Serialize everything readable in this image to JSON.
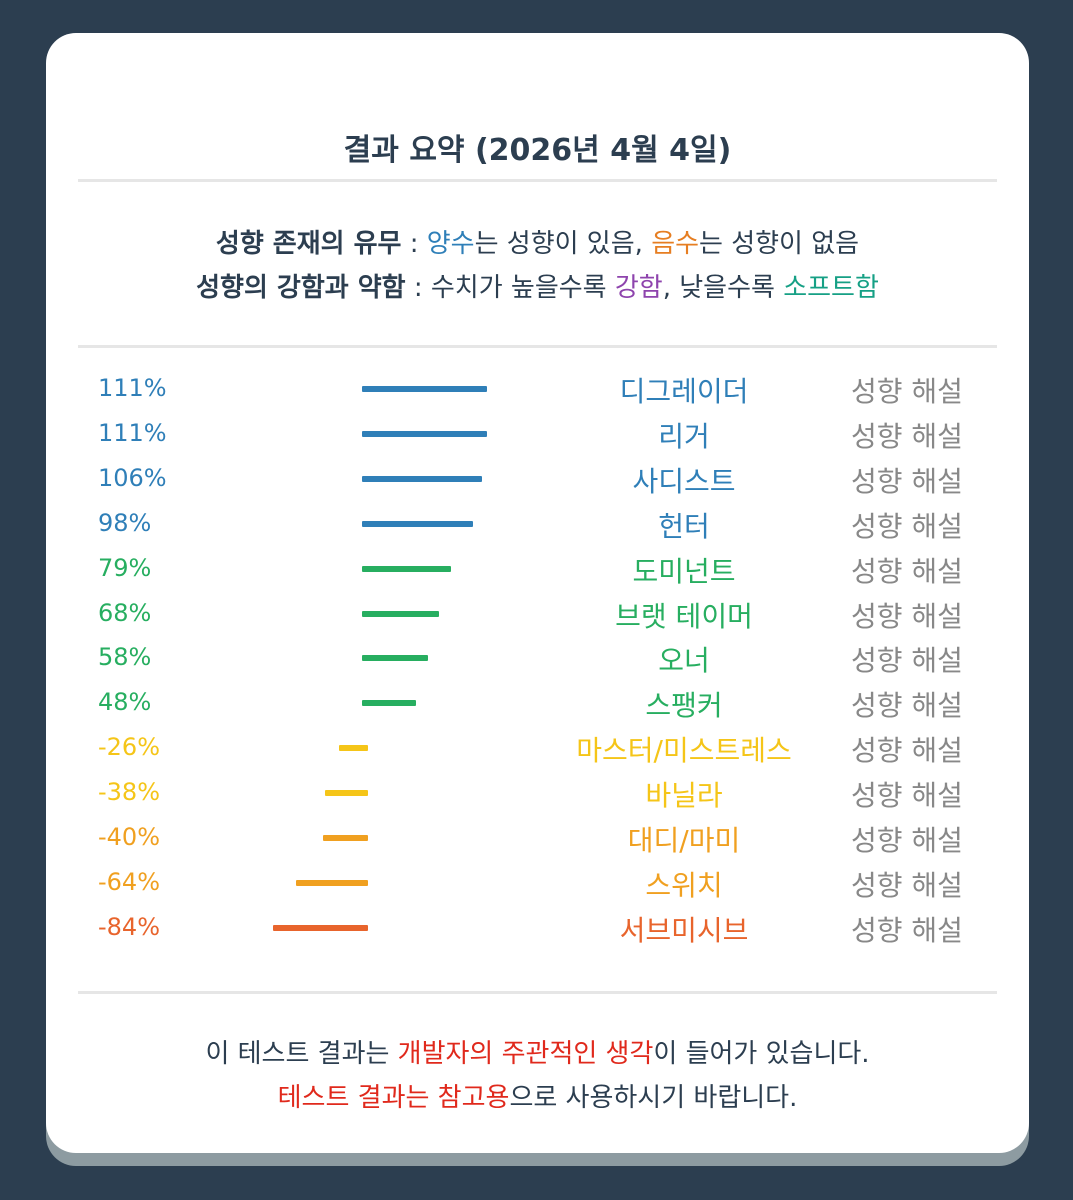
{
  "title": "결과 요약 (2026년 4월 4일)",
  "legend": {
    "line1": {
      "label": "성향 존재의 유무",
      "sep": " : ",
      "positive": "양수",
      "mid1": "는 성향이 있음, ",
      "negative": "음수",
      "end": "는 성향이 없음"
    },
    "line2": {
      "label": "성향의 강함과 약함",
      "sep": " : 수치가 높을수록 ",
      "strong": "강함",
      "mid": ", 낮을수록 ",
      "soft": "소프트함"
    }
  },
  "colors": {
    "blue": "#2f7fb8",
    "green": "#27ae60",
    "yellow": "#f5c518",
    "orange": "#f0a020",
    "red_orange": "#e8642c",
    "purple": "#8e44ad",
    "teal": "#16a085",
    "orange_text": "#e67e22"
  },
  "results": [
    {
      "value": 111,
      "label": "111%",
      "name": "디그레이더",
      "link": "성향 해설",
      "color": "#2f7fb8"
    },
    {
      "value": 111,
      "label": "111%",
      "name": "리거",
      "link": "성향 해설",
      "color": "#2f7fb8"
    },
    {
      "value": 106,
      "label": "106%",
      "name": "사디스트",
      "link": "성향 해설",
      "color": "#2f7fb8"
    },
    {
      "value": 98,
      "label": "98%",
      "name": "헌터",
      "link": "성향 해설",
      "color": "#2f7fb8"
    },
    {
      "value": 79,
      "label": "79%",
      "name": "도미넌트",
      "link": "성향 해설",
      "color": "#27ae60"
    },
    {
      "value": 68,
      "label": "68%",
      "name": "브랫 테이머",
      "link": "성향 해설",
      "color": "#27ae60"
    },
    {
      "value": 58,
      "label": "58%",
      "name": "오너",
      "link": "성향 해설",
      "color": "#27ae60"
    },
    {
      "value": 48,
      "label": "48%",
      "name": "스팽커",
      "link": "성향 해설",
      "color": "#27ae60"
    },
    {
      "value": -26,
      "label": "-26%",
      "name": "마스터/미스트레스",
      "link": "성향 해설",
      "color": "#f5c518"
    },
    {
      "value": -38,
      "label": "-38%",
      "name": "바닐라",
      "link": "성향 해설",
      "color": "#f5c518"
    },
    {
      "value": -40,
      "label": "-40%",
      "name": "대디/마미",
      "link": "성향 해설",
      "color": "#f0a020"
    },
    {
      "value": -64,
      "label": "-64%",
      "name": "스위치",
      "link": "성향 해설",
      "color": "#f0a020"
    },
    {
      "value": -84,
      "label": "-84%",
      "name": "서브미시브",
      "link": "성향 해설",
      "color": "#e8642c"
    }
  ],
  "footer": {
    "line1_a": "이 테스트 결과는 ",
    "line1_b": "개발자의 주관적인 생각",
    "line1_c": "이 들어가 있습니다.",
    "line2_a": "테스트 결과는 참고용",
    "line2_b": "으로 사용하시기 바랍니다."
  }
}
